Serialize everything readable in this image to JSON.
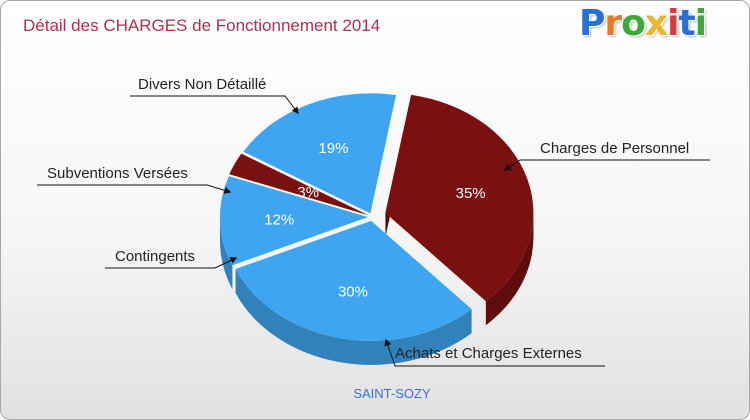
{
  "header": {
    "title": "Détail des CHARGES de Fonctionnement 2014",
    "logo": "Proxiti"
  },
  "chart_data": {
    "type": "pie",
    "title": "Détail des CHARGES de Fonctionnement 2014",
    "categories": [
      "Charges de Personnel",
      "Achats et Charges Externes",
      "Contingents",
      "Subventions Versées",
      "Divers Non Détaillé"
    ],
    "values": [
      35,
      30,
      12,
      3,
      19
    ],
    "labels": [
      "35%",
      "30%",
      "12%",
      "3%",
      "19%"
    ],
    "colors": [
      "#7a1010",
      "#3fa5f0",
      "#3fa5f0",
      "#7a1010",
      "#3fa5f0"
    ],
    "exploded": [
      "Charges de Personnel"
    ],
    "footer": "SAINT-SOZY"
  },
  "colors": {
    "title": "#b22d4f",
    "logo": [
      "#2a6fd6",
      "#e8792b",
      "#3fa83a",
      "#e8b72b",
      "#d63a3a",
      "#2a6fd6",
      "#3fa83a"
    ]
  }
}
